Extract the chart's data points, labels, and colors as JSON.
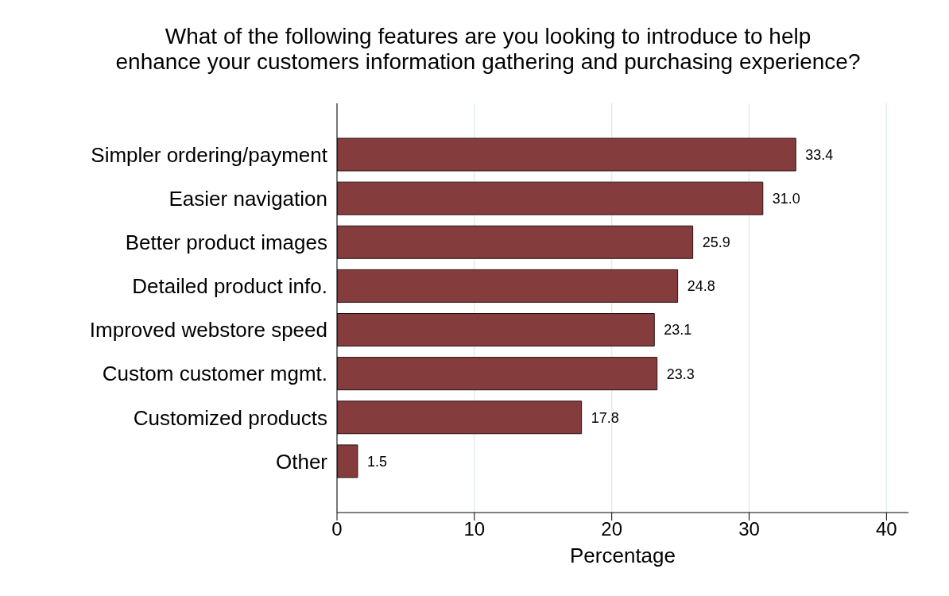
{
  "chart_data": {
    "type": "bar",
    "orientation": "horizontal",
    "title": "What of the following features are you looking to introduce to help\nenhance your customers information gathering and purchasing experience?",
    "xlabel": "Percentage",
    "categories": [
      "Simpler ordering/payment",
      "Easier navigation",
      "Better product images",
      "Detailed product info.",
      "Improved webstore speed",
      "Custom customer mgmt.",
      "Customized products",
      "Other"
    ],
    "values": [
      33.4,
      31.0,
      25.9,
      24.8,
      23.1,
      23.3,
      17.8,
      1.5
    ],
    "value_labels": [
      "33.4",
      "31.0",
      "25.9",
      "24.8",
      "23.1",
      "23.3",
      "17.8",
      "1.5"
    ],
    "color": "#843c3c",
    "xlim": [
      0,
      41.6
    ],
    "xticks": [
      0,
      10,
      20,
      30,
      40
    ],
    "grid": "x"
  }
}
